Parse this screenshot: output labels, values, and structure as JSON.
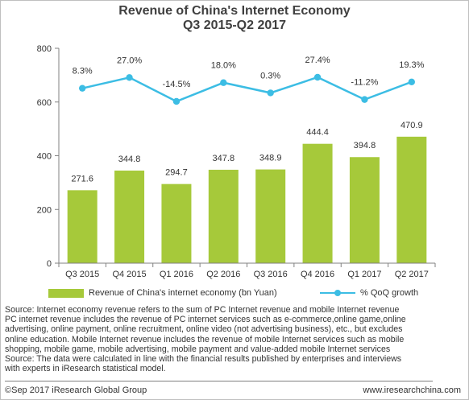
{
  "chart_data": {
    "type": "bar",
    "title_line1": "Revenue of China's Internet Economy",
    "title_line2": "Q3 2015-Q2 2017",
    "categories": [
      "Q3 2015",
      "Q4 2015",
      "Q1 2016",
      "Q2 2016",
      "Q3 2016",
      "Q4 2016",
      "Q1 2017",
      "Q2 2017"
    ],
    "series": [
      {
        "name": "Revenue of China's internet economy (bn Yuan)",
        "type": "bar",
        "values": [
          271.6,
          344.8,
          294.7,
          347.8,
          348.9,
          444.4,
          394.8,
          470.9
        ],
        "labels": [
          "271.6",
          "344.8",
          "294.7",
          "347.8",
          "348.9",
          "444.4",
          "394.8",
          "470.9"
        ],
        "color": "#a6c93a"
      },
      {
        "name": "% QoQ growth",
        "type": "line",
        "values": [
          8.3,
          27.0,
          -14.5,
          18.0,
          0.3,
          27.4,
          -11.2,
          19.3
        ],
        "labels": [
          "8.3%",
          "27.0%",
          "-14.5%",
          "18.0%",
          "0.3%",
          "27.4%",
          "-11.2%",
          "19.3%"
        ],
        "color": "#3cbde4"
      }
    ],
    "ylim": [
      0,
      800
    ],
    "yticks": [
      0,
      200,
      400,
      600,
      800
    ],
    "ytick_labels": [
      "0",
      "200",
      "400",
      "600",
      "800"
    ],
    "grid": false,
    "legend": "bottom"
  },
  "notes": [
    "Source: Internet economy revenue refers to  the  sum of PC Internet revenue and mobile Internet revenue",
    "PC  internet revenue includes the revenue of PC internet services such as e-commerce,online game,online",
    "advertising, online payment, online recruitment, online video (not advertising business), etc., but excludes",
    "online education. Mobile Internet revenue includes the revenue of mobile Internet services such as mobile",
    "shopping, mobile  game,  mobile  advertising, mobile payment and value-added mobile Internet services",
    "Source: The data were calculated in line with the financial results published by enterprises and interviews",
    "with experts in iResearch statistical model."
  ],
  "footer": {
    "left": "©Sep 2017 iResearch Global Group",
    "right": "www.iresearchchina.com"
  }
}
